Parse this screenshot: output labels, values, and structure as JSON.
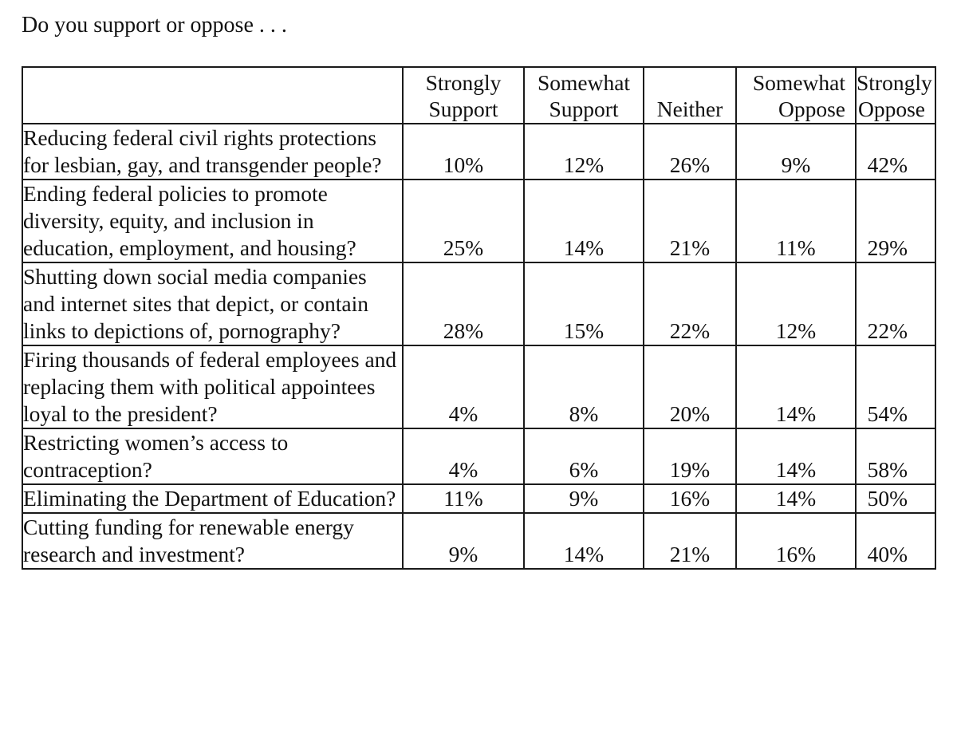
{
  "question": "Do you support or oppose . . .",
  "columns": [
    {
      "line1": "Strongly",
      "line2": "Support"
    },
    {
      "line1": "Somewhat",
      "line2": "Support"
    },
    {
      "line1": "",
      "line2": "Neither"
    },
    {
      "line1": "Somewhat",
      "line2": "Oppose"
    },
    {
      "line1": "Strongly",
      "line2": "Oppose"
    }
  ],
  "rows": [
    {
      "label": "Reducing federal civil rights protections for lesbian, gay, and transgender people?",
      "values": [
        "10%",
        "12%",
        "26%",
        "9%",
        "42%"
      ]
    },
    {
      "label": "Ending federal policies to promote diversity, equity, and inclusion in education, employment, and housing?",
      "values": [
        "25%",
        "14%",
        "21%",
        "11%",
        "29%"
      ]
    },
    {
      "label": "Shutting down social media companies and internet sites that depict, or contain links to depictions of, pornography?",
      "values": [
        "28%",
        "15%",
        "22%",
        "12%",
        "22%"
      ]
    },
    {
      "label": "Firing thousands of federal employees and replacing them with political appointees loyal to the president?",
      "values": [
        "4%",
        "8%",
        "20%",
        "14%",
        "54%"
      ]
    },
    {
      "label": "Restricting women’s access to contraception?",
      "values": [
        "4%",
        "6%",
        "19%",
        "14%",
        "58%"
      ]
    },
    {
      "label": "Eliminating the Department of Education?",
      "values": [
        "11%",
        "9%",
        "16%",
        "14%",
        "50%"
      ]
    },
    {
      "label": "Cutting funding for renewable energy research and investment?",
      "values": [
        "9%",
        "14%",
        "21%",
        "16%",
        "40%"
      ]
    }
  ]
}
